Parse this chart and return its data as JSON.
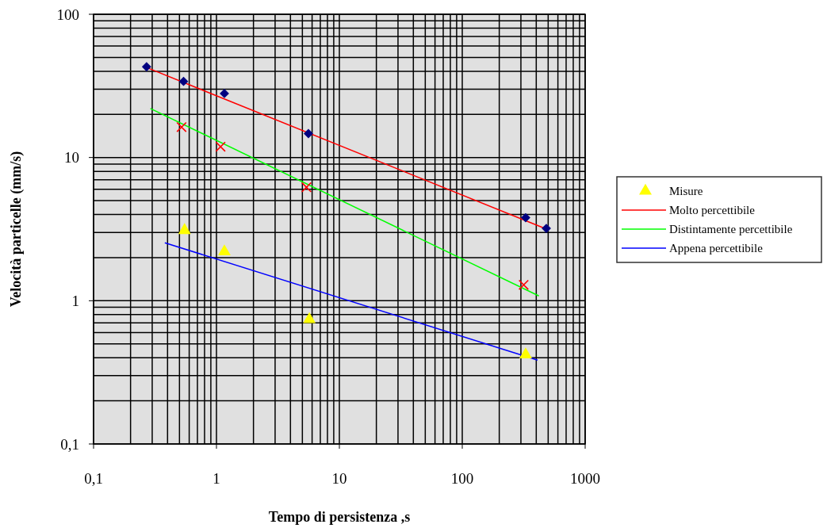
{
  "chart_data": {
    "type": "scatter",
    "xlabel": "Tempo di persistenza ,s",
    "ylabel": "Velocità particelle (mm/s)",
    "log": "xy",
    "grid": true,
    "legend": "right",
    "xlim": [
      0.1,
      1000
    ],
    "ylim": [
      0.1,
      100
    ],
    "xticks": [
      {
        "value": 0.1,
        "label": "0,1"
      },
      {
        "value": 0.2,
        "label": null
      },
      {
        "value": 0.3,
        "label": null
      },
      {
        "value": 0.4,
        "label": null
      },
      {
        "value": 0.5,
        "label": null
      },
      {
        "value": 0.6,
        "label": null
      },
      {
        "value": 0.7,
        "label": null
      },
      {
        "value": 0.8,
        "label": null
      },
      {
        "value": 0.9,
        "label": null
      },
      1,
      {
        "value": 2,
        "label": null
      },
      {
        "value": 3,
        "label": null
      },
      {
        "value": 4,
        "label": null
      },
      {
        "value": 5,
        "label": null
      },
      {
        "value": 6,
        "label": null
      },
      {
        "value": 7,
        "label": null
      },
      {
        "value": 8,
        "label": null
      },
      {
        "value": 9,
        "label": null
      },
      10,
      {
        "value": 20,
        "label": null
      },
      {
        "value": 30,
        "label": null
      },
      {
        "value": 40,
        "label": null
      },
      {
        "value": 50,
        "label": null
      },
      {
        "value": 60,
        "label": null
      },
      {
        "value": 70,
        "label": null
      },
      {
        "value": 80,
        "label": null
      },
      {
        "value": 90,
        "label": null
      },
      100,
      {
        "value": 200,
        "label": null
      },
      {
        "value": 300,
        "label": null
      },
      {
        "value": 400,
        "label": null
      },
      {
        "value": 500,
        "label": null
      },
      {
        "value": 600,
        "label": null
      },
      {
        "value": 700,
        "label": null
      },
      {
        "value": 800,
        "label": null
      },
      {
        "value": 900,
        "label": null
      },
      1000
    ],
    "yticks": [
      {
        "value": 0.1,
        "label": "0,1"
      },
      {
        "value": 0.2,
        "label": null
      },
      {
        "value": 0.3,
        "label": null
      },
      {
        "value": 0.4,
        "label": null
      },
      {
        "value": 0.5,
        "label": null
      },
      {
        "value": 0.6,
        "label": null
      },
      {
        "value": 0.7,
        "label": null
      },
      {
        "value": 0.8,
        "label": null
      },
      {
        "value": 0.9,
        "label": null
      },
      1,
      {
        "value": 2,
        "label": null
      },
      {
        "value": 3,
        "label": null
      },
      {
        "value": 4,
        "label": null
      },
      {
        "value": 5,
        "label": null
      },
      {
        "value": 6,
        "label": null
      },
      {
        "value": 7,
        "label": null
      },
      {
        "value": 8,
        "label": null
      },
      {
        "value": 9,
        "label": null
      },
      10,
      {
        "value": 20,
        "label": null
      },
      {
        "value": 30,
        "label": null
      },
      {
        "value": 40,
        "label": null
      },
      {
        "value": 50,
        "label": null
      },
      {
        "value": 60,
        "label": null
      },
      {
        "value": 70,
        "label": null
      },
      {
        "value": 80,
        "label": null
      },
      {
        "value": 90,
        "label": null
      },
      100
    ],
    "series": [
      {
        "marker": "diamond",
        "color": "#000080",
        "x": [
          0.27,
          0.54,
          1.16,
          5.6,
          328,
          483
        ],
        "values": [
          43,
          34,
          28,
          14.7,
          3.8,
          3.2
        ]
      },
      {
        "marker": "cross",
        "color": "#ff0000",
        "x": [
          0.52,
          1.08,
          5.4,
          316
        ],
        "values": [
          16.3,
          11.9,
          6.2,
          1.29
        ]
      },
      {
        "name": "Misure",
        "marker": "triangle",
        "color": "#ffff00",
        "x": [
          0.55,
          1.16,
          5.7,
          328
        ],
        "values": [
          3.1,
          2.2,
          0.74,
          0.42
        ]
      },
      {
        "name": "Molto percettibile",
        "type": "line",
        "color": "#ff0000",
        "x": [
          0.27,
          490
        ],
        "values": [
          42.5,
          3.15
        ]
      },
      {
        "name": "Distintamente percettibile",
        "type": "line",
        "color": "#00ff00",
        "x": [
          0.29,
          420
        ],
        "values": [
          22,
          1.08
        ]
      },
      {
        "name": "Appena percettibile",
        "type": "line",
        "color": "#0000ff",
        "x": [
          0.38,
          410
        ],
        "values": [
          2.54,
          0.385
        ]
      }
    ]
  }
}
